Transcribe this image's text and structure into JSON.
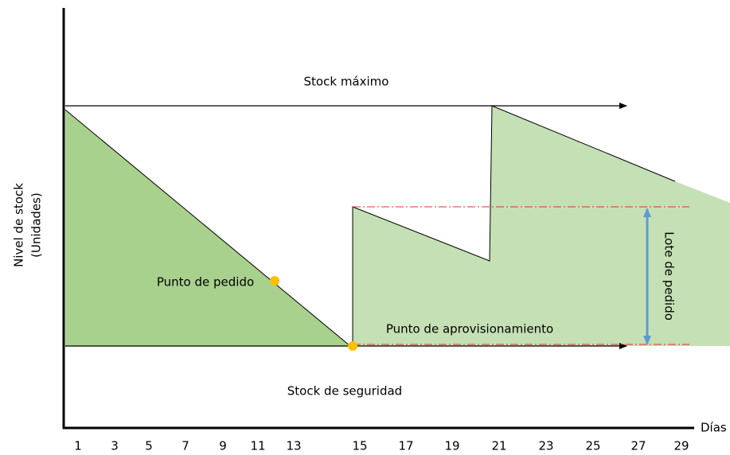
{
  "diagram": {
    "y_axis_label": [
      "Nivel de stock",
      "(Unidades)"
    ],
    "x_axis_label": "Días",
    "x_ticks": [
      "1",
      "3",
      "5",
      "7",
      "9",
      "11",
      "13",
      "15",
      "17",
      "19",
      "21",
      "23",
      "25",
      "27",
      "29"
    ],
    "labels": {
      "max_stock": "Stock máximo",
      "reorder_point": "Punto de pedido",
      "supply_point": "Punto de aprovisionamiento",
      "safety_stock": "Stock de seguridad",
      "order_lot": "Lote de pedido"
    }
  }
}
